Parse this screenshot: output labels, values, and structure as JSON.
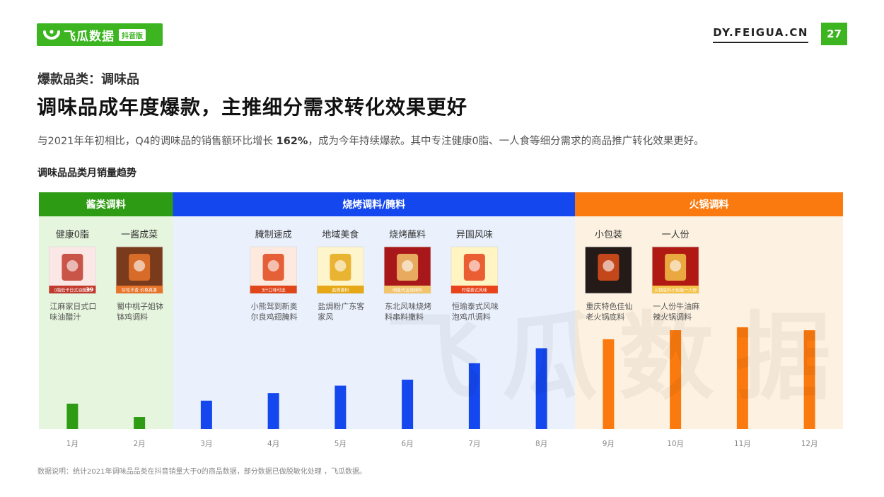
{
  "brand": {
    "name": "飞瓜数据",
    "badge": "抖音版",
    "site": "DY.FEIGUA.CN",
    "page_number": "27",
    "watermark": "飞瓜数据"
  },
  "header": {
    "kicker": "爆款品类：调味品",
    "headline": "调味品成年度爆款，主推细分需求转化效果更好",
    "summary_before": "与2021年年初相比，Q4的调味品的销售额环比增长 ",
    "summary_highlight": "162%",
    "summary_after": "，成为今年持续爆款。其中专注健康0脂、一人食等细分需求的商品推广转化效果更好。"
  },
  "chart_title": "调味品品类月销量趋势",
  "footnote": "数据说明：统计2021年调味品品类在抖音销量大于0的商品数据，部分数据已做脱敏化处理 ，飞瓜数据。",
  "colors": {
    "green": "#2e9b14",
    "blue": "#1448ee",
    "orange": "#fa7a0f",
    "green_bg": "#e6f5dd",
    "blue_bg": "#eaf1fd",
    "orange_bg": "#fdf2e1"
  },
  "chart_data": {
    "type": "bar",
    "categories": [
      "1月",
      "2月",
      "3月",
      "4月",
      "5月",
      "6月",
      "7月",
      "8月",
      "9月",
      "10月",
      "11月",
      "12月"
    ],
    "values": [
      17,
      8,
      19,
      24,
      29,
      33,
      44,
      54,
      60,
      66,
      68,
      66
    ],
    "ylim": [
      0,
      100
    ],
    "grid": false,
    "groups": [
      {
        "label": "酱类调料",
        "months": [
          0,
          1
        ],
        "color": "green"
      },
      {
        "label": "烧烤调料/腌料",
        "months": [
          2,
          7
        ],
        "color": "blue"
      },
      {
        "label": "火锅调料",
        "months": [
          8,
          11
        ],
        "color": "orange"
      }
    ],
    "annotations": [
      {
        "month": 0,
        "tag": "健康0脂",
        "product": [
          "江麻家日式口",
          "味油醋汁"
        ],
        "icon": "vinegar-product-icon",
        "img_text": "0脂低卡日式油醋汁",
        "img_price": "39",
        "theme": [
          "#fbe8e6",
          "#c0392b"
        ]
      },
      {
        "month": 1,
        "tag": "一酱成菜",
        "product": [
          "蜀中桃子姐钵",
          "钵鸡调料"
        ],
        "icon": "bobo-chicken-product-icon",
        "img_text": "好吃不贵 价格真香",
        "img_price": "",
        "theme": [
          "#7a3b1c",
          "#e8742a"
        ]
      },
      {
        "month": 3,
        "tag": "腌制速成",
        "product": [
          "小熊驾到新奥",
          "尔良鸡翅腌料"
        ],
        "icon": "marinade-jar-product-icon",
        "img_text": "3斤口味可选",
        "img_price": "",
        "theme": [
          "#fde9dd",
          "#e0461a"
        ]
      },
      {
        "month": 4,
        "tag": "地域美食",
        "product": [
          "盐焗粉广东客",
          "家风"
        ],
        "icon": "salt-baked-product-icon",
        "img_text": "盐焗香料",
        "img_price": "",
        "theme": [
          "#fff5cc",
          "#e6a817"
        ]
      },
      {
        "month": 5,
        "tag": "烧烤蘸料",
        "product": [
          "东北风味烧烤",
          "料串料撒料"
        ],
        "icon": "bbq-seasoning-product-icon",
        "img_text": "明星代言烧烤料",
        "img_price": "",
        "theme": [
          "#a8181a",
          "#f2c46b"
        ]
      },
      {
        "month": 6,
        "tag": "异国风味",
        "product": [
          "恒瑜泰式风味",
          "泡鸡爪调料"
        ],
        "icon": "thai-chicken-feet-product-icon",
        "img_text": "柠檬泰式风味",
        "img_price": "",
        "theme": [
          "#fff4c2",
          "#e8431b"
        ]
      },
      {
        "month": 8,
        "tag": "小包装",
        "product": [
          "重庆特色佳仙",
          "老火锅底料"
        ],
        "icon": "hotpot-base-product-icon",
        "img_text": "",
        "img_price": "",
        "theme": [
          "#241a17",
          "#e0501d"
        ]
      },
      {
        "month": 9,
        "tag": "一人份",
        "product": [
          "一人份牛油麻",
          "辣火锅调料"
        ],
        "icon": "single-hotpot-product-icon",
        "img_text": "火锅底料小包装一人份",
        "img_price": "",
        "theme": [
          "#b01a12",
          "#f5c24a"
        ]
      }
    ]
  }
}
